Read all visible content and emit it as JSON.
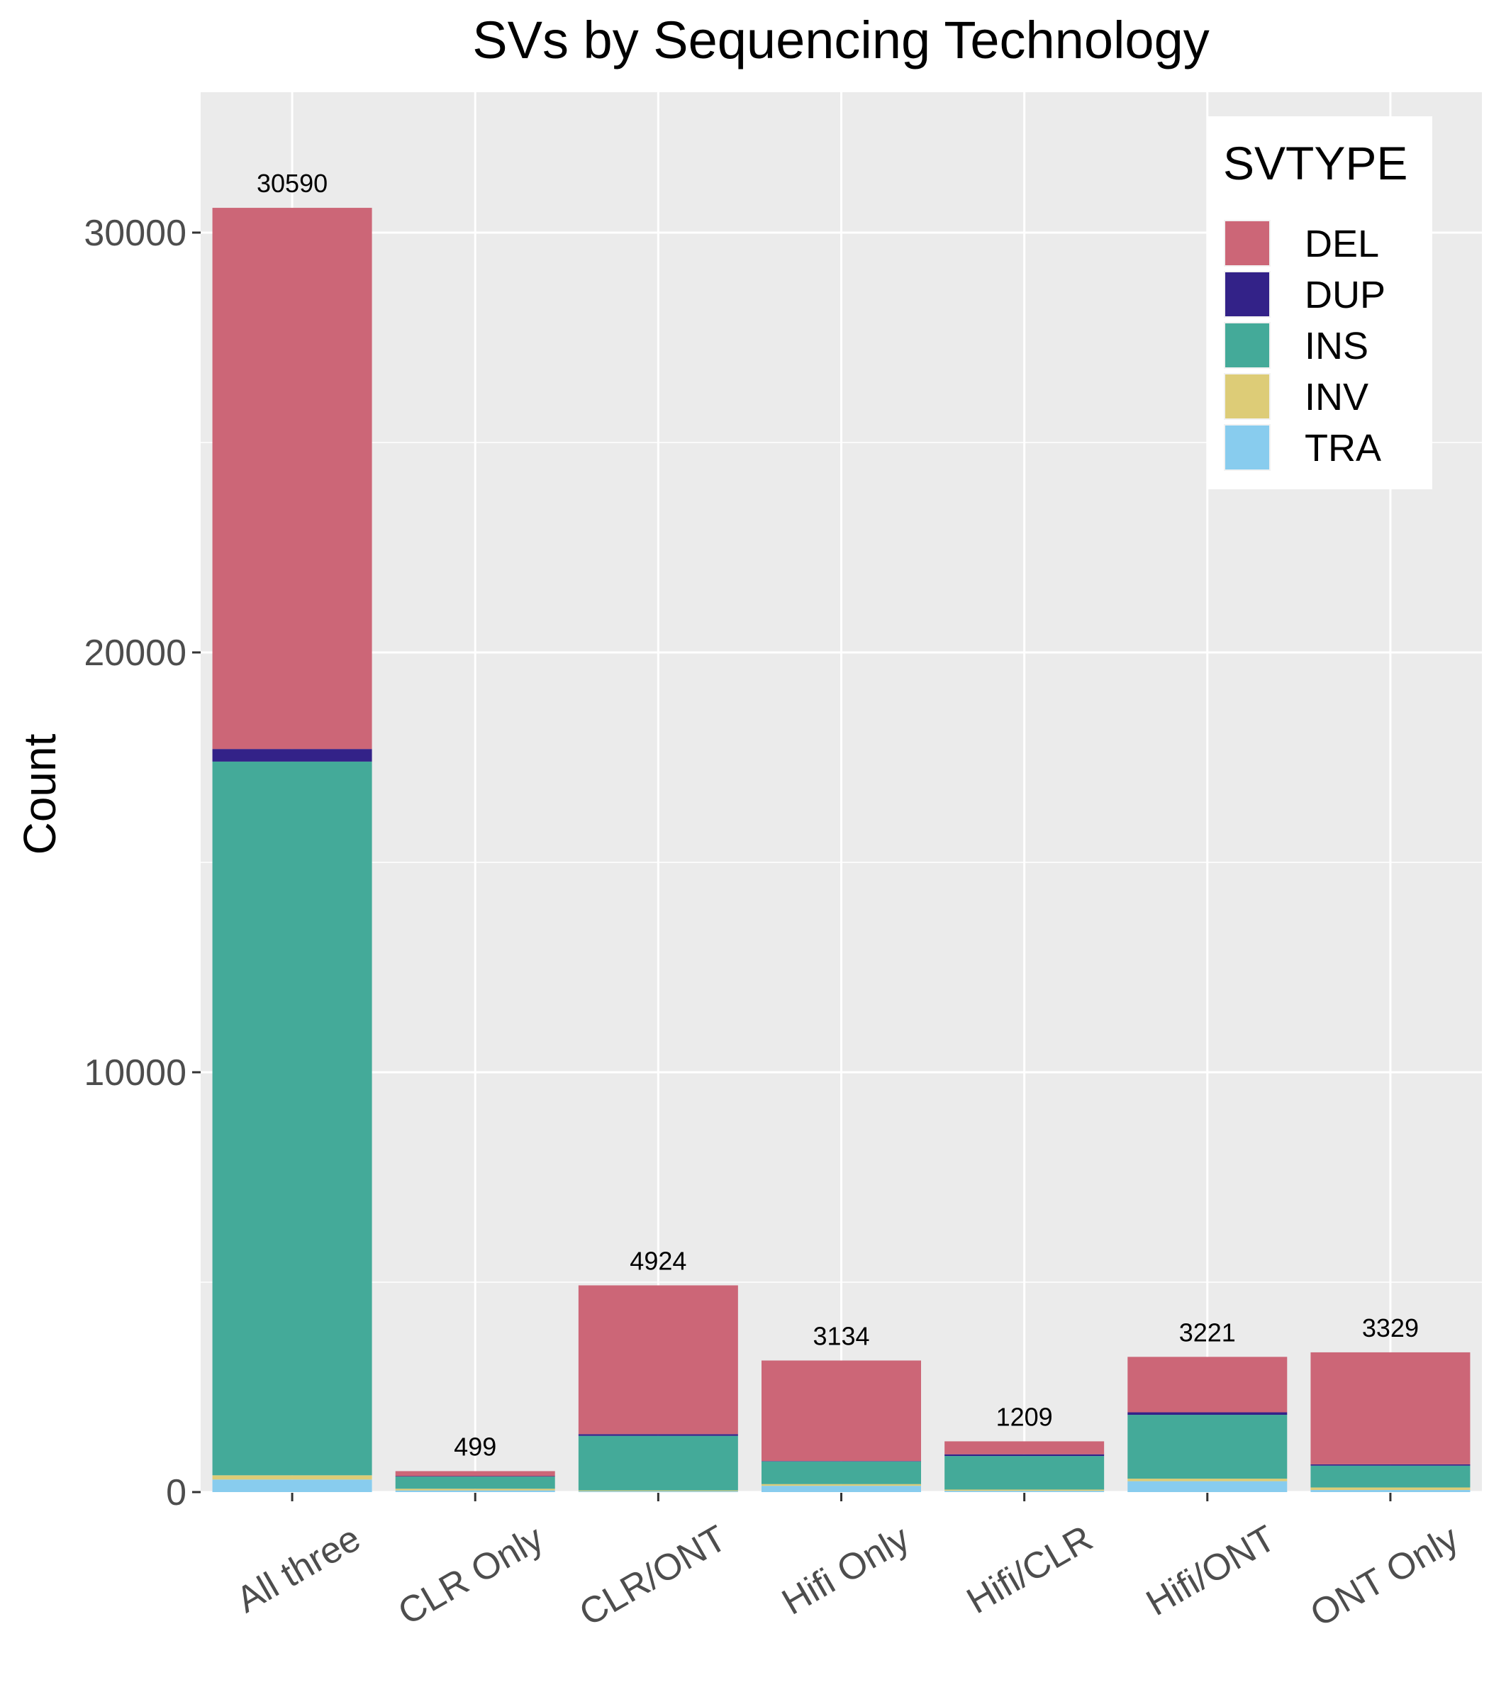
{
  "chart_data": {
    "type": "bar",
    "stacked": true,
    "title": "SVs by Sequencing Technology",
    "xlabel": "",
    "ylabel": "Count",
    "ylim": [
      0,
      32800
    ],
    "yticks": [
      0,
      10000,
      20000,
      30000
    ],
    "grid": true,
    "legend_title": "SVTYPE",
    "legend_position": "top-right",
    "categories": [
      "All three",
      "CLR Only",
      "CLR/ONT",
      "Hifi Only",
      "Hifi/CLR",
      "Hifi/ONT",
      "ONT Only"
    ],
    "totals": [
      30590,
      499,
      4924,
      3134,
      1209,
      3221,
      3329
    ],
    "series": [
      {
        "name": "TRA",
        "color": "#88CCEE",
        "values": [
          300,
          40,
          20,
          150,
          30,
          260,
          50
        ]
      },
      {
        "name": "INV",
        "color": "#DDCC77",
        "values": [
          100,
          40,
          20,
          40,
          30,
          60,
          60
        ]
      },
      {
        "name": "INS",
        "color": "#44AA99",
        "values": [
          17000,
          290,
          1300,
          540,
          800,
          1520,
          520
        ]
      },
      {
        "name": "DUP",
        "color": "#332288",
        "values": [
          300,
          10,
          40,
          10,
          40,
          60,
          30
        ]
      },
      {
        "name": "DEL",
        "color": "#CC6677",
        "values": [
          12890,
          119,
          3544,
          2394,
          309,
          1321,
          2669
        ]
      }
    ],
    "legend_order": [
      "DEL",
      "DUP",
      "INS",
      "INV",
      "TRA"
    ]
  }
}
